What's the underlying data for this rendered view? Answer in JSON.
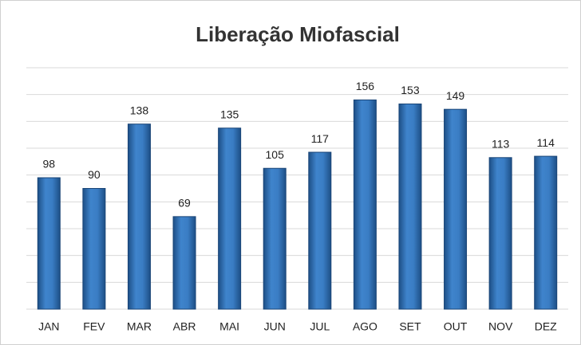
{
  "chart_data": {
    "type": "bar",
    "title": "Liberação Miofascial",
    "categories": [
      "JAN",
      "FEV",
      "MAR",
      "ABR",
      "MAI",
      "JUN",
      "JUL",
      "AGO",
      "SET",
      "OUT",
      "NOV",
      "DEZ"
    ],
    "values": [
      98,
      90,
      138,
      69,
      135,
      105,
      117,
      156,
      153,
      149,
      113,
      114
    ],
    "color": "#2e6fb5",
    "ylim": [
      0,
      180
    ],
    "yticks": [
      0,
      20,
      40,
      60,
      80,
      100,
      120,
      140,
      160,
      180
    ],
    "grid": true
  }
}
